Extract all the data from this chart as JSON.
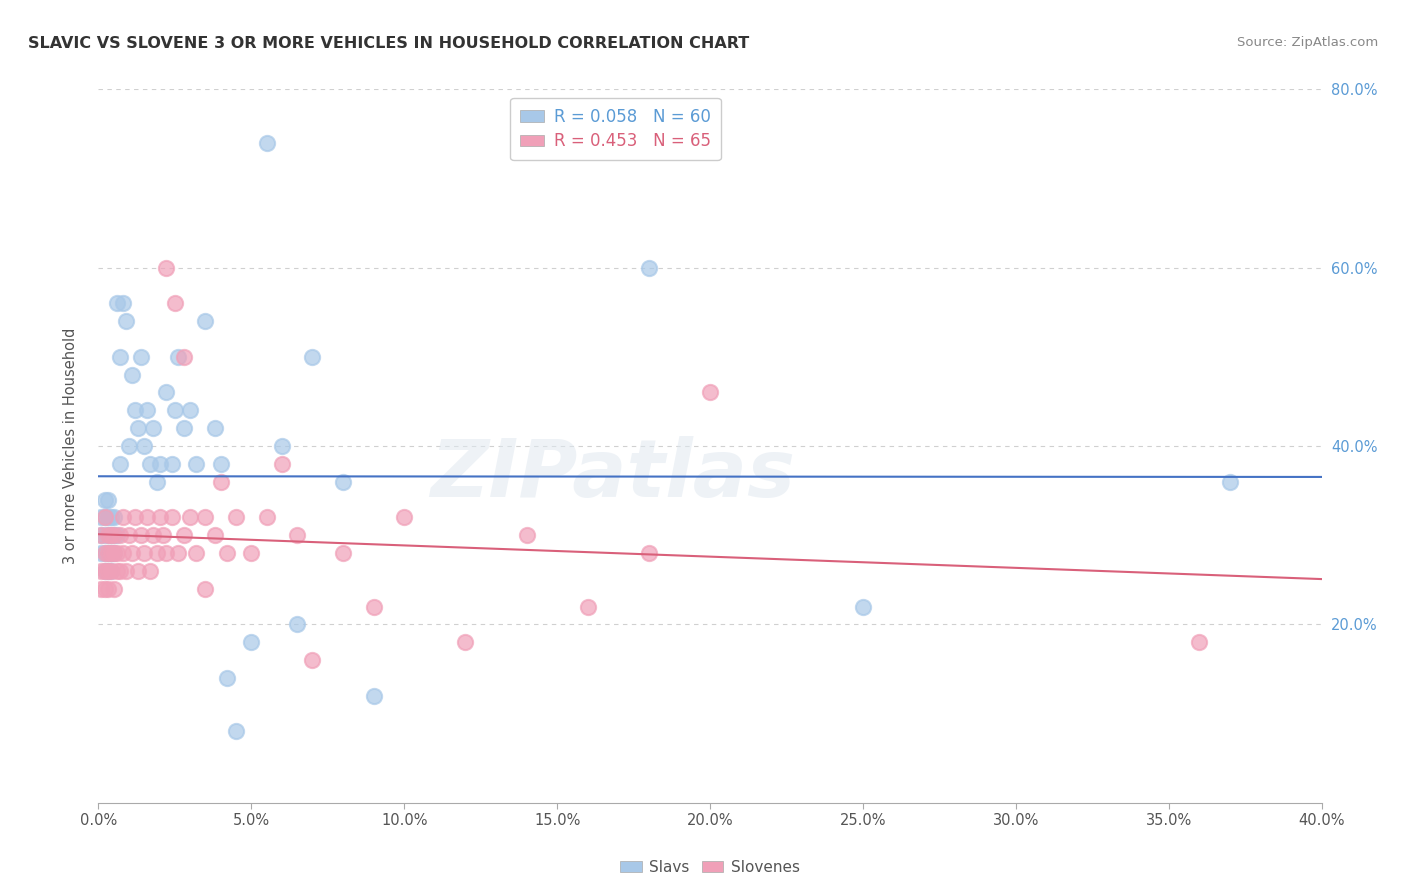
{
  "title": "SLAVIC VS SLOVENE 3 OR MORE VEHICLES IN HOUSEHOLD CORRELATION CHART",
  "source": "Source: ZipAtlas.com",
  "ylabel_label": "3 or more Vehicles in Household",
  "xlim": [
    0.0,
    0.4
  ],
  "ylim": [
    0.0,
    0.8
  ],
  "yticks": [
    0.2,
    0.4,
    0.6,
    0.8
  ],
  "ytick_labels": [
    "20.0%",
    "40.0%",
    "60.0%",
    "80.0%"
  ],
  "xticks": [
    0.0,
    0.05,
    0.1,
    0.15,
    0.2,
    0.25,
    0.3,
    0.35,
    0.4
  ],
  "xtick_labels": [
    "0.0%",
    "5.0%",
    "10.0%",
    "15.0%",
    "20.0%",
    "25.0%",
    "30.0%",
    "35.0%",
    "40.0%"
  ],
  "slavs_R": 0.058,
  "slavs_N": 60,
  "slovenes_R": 0.453,
  "slovenes_N": 65,
  "slavs_color": "#a8c8e8",
  "slovenes_color": "#f0a0b8",
  "slavs_line_color": "#4472c4",
  "slovenes_line_color": "#d9607a",
  "watermark_text": "ZIPatlas",
  "slavs_x": [
    0.001,
    0.001,
    0.001,
    0.002,
    0.002,
    0.002,
    0.002,
    0.002,
    0.003,
    0.003,
    0.003,
    0.003,
    0.003,
    0.004,
    0.004,
    0.004,
    0.004,
    0.004,
    0.005,
    0.005,
    0.005,
    0.006,
    0.006,
    0.007,
    0.007,
    0.008,
    0.009,
    0.01,
    0.011,
    0.012,
    0.013,
    0.014,
    0.015,
    0.016,
    0.017,
    0.018,
    0.019,
    0.02,
    0.022,
    0.024,
    0.025,
    0.026,
    0.028,
    0.03,
    0.032,
    0.035,
    0.038,
    0.04,
    0.042,
    0.045,
    0.05,
    0.055,
    0.06,
    0.065,
    0.07,
    0.08,
    0.09,
    0.18,
    0.25,
    0.37
  ],
  "slavs_y": [
    0.3,
    0.28,
    0.32,
    0.28,
    0.3,
    0.34,
    0.26,
    0.32,
    0.28,
    0.3,
    0.32,
    0.26,
    0.34,
    0.28,
    0.3,
    0.32,
    0.26,
    0.28,
    0.3,
    0.32,
    0.28,
    0.3,
    0.56,
    0.38,
    0.5,
    0.56,
    0.54,
    0.4,
    0.48,
    0.44,
    0.42,
    0.5,
    0.4,
    0.44,
    0.38,
    0.42,
    0.36,
    0.38,
    0.46,
    0.38,
    0.44,
    0.5,
    0.42,
    0.44,
    0.38,
    0.54,
    0.42,
    0.38,
    0.14,
    0.08,
    0.18,
    0.74,
    0.4,
    0.2,
    0.5,
    0.36,
    0.12,
    0.6,
    0.22,
    0.36
  ],
  "slovenes_x": [
    0.001,
    0.001,
    0.001,
    0.002,
    0.002,
    0.002,
    0.002,
    0.003,
    0.003,
    0.003,
    0.003,
    0.004,
    0.004,
    0.004,
    0.005,
    0.005,
    0.005,
    0.006,
    0.006,
    0.007,
    0.007,
    0.008,
    0.008,
    0.009,
    0.01,
    0.011,
    0.012,
    0.013,
    0.014,
    0.015,
    0.016,
    0.017,
    0.018,
    0.019,
    0.02,
    0.021,
    0.022,
    0.024,
    0.026,
    0.028,
    0.03,
    0.032,
    0.035,
    0.038,
    0.04,
    0.042,
    0.045,
    0.05,
    0.055,
    0.06,
    0.065,
    0.07,
    0.08,
    0.09,
    0.1,
    0.12,
    0.14,
    0.16,
    0.18,
    0.2,
    0.022,
    0.025,
    0.028,
    0.035,
    0.36
  ],
  "slovenes_y": [
    0.26,
    0.3,
    0.24,
    0.28,
    0.26,
    0.32,
    0.24,
    0.28,
    0.26,
    0.3,
    0.24,
    0.28,
    0.3,
    0.26,
    0.28,
    0.3,
    0.24,
    0.26,
    0.28,
    0.26,
    0.3,
    0.28,
    0.32,
    0.26,
    0.3,
    0.28,
    0.32,
    0.26,
    0.3,
    0.28,
    0.32,
    0.26,
    0.3,
    0.28,
    0.32,
    0.3,
    0.28,
    0.32,
    0.28,
    0.3,
    0.32,
    0.28,
    0.32,
    0.3,
    0.36,
    0.28,
    0.32,
    0.28,
    0.32,
    0.38,
    0.3,
    0.16,
    0.28,
    0.22,
    0.32,
    0.18,
    0.3,
    0.22,
    0.28,
    0.46,
    0.6,
    0.56,
    0.5,
    0.24,
    0.18
  ]
}
